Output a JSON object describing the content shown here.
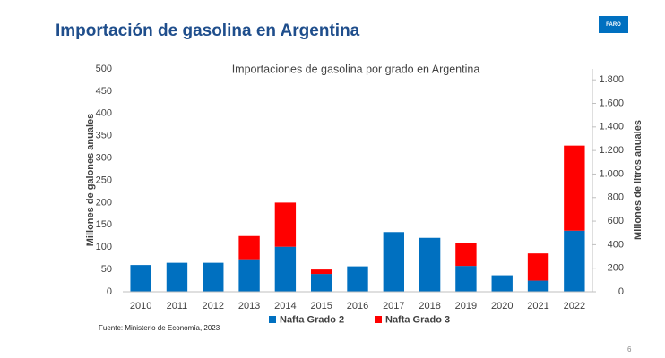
{
  "header": {
    "title": "Importación de gasolina en Argentina",
    "logo": "FARO"
  },
  "chart_data": {
    "type": "bar",
    "stacked": true,
    "title": "Importaciones de gasolina por grado en Argentina",
    "ylabel": "Millones de galones anuales",
    "y2label": "Millones de litros anuales",
    "categories": [
      "2010",
      "2011",
      "2012",
      "2013",
      "2014",
      "2015",
      "2016",
      "2017",
      "2018",
      "2019",
      "2020",
      "2021",
      "2022"
    ],
    "series": [
      {
        "name": "Nafta Grado 2",
        "color": "#0070c0",
        "values": [
          60,
          65,
          65,
          73,
          101,
          40,
          57,
          134,
          121,
          58,
          37,
          25,
          137
        ]
      },
      {
        "name": "Nafta Grado 3",
        "color": "#ff0000",
        "values": [
          0,
          0,
          0,
          52,
          99,
          10,
          0,
          0,
          0,
          52,
          0,
          61,
          191
        ]
      }
    ],
    "ylim": [
      0,
      500
    ],
    "yticks": [
      0,
      50,
      100,
      150,
      200,
      250,
      300,
      350,
      400,
      450,
      500
    ],
    "y2lim": [
      0,
      1892.7
    ],
    "y2ticks": [
      0,
      200,
      400,
      600,
      800,
      {
        "value": 1000,
        "label": "1.000"
      },
      {
        "value": 1200,
        "label": "1.200"
      },
      {
        "value": 1400,
        "label": "1.400"
      },
      {
        "value": 1600,
        "label": "1.600"
      },
      {
        "value": 1800,
        "label": "1.800"
      }
    ],
    "legend": "bottom"
  },
  "footer": {
    "source": "Fuente: Ministerio de Economía, 2023",
    "page": "6"
  }
}
